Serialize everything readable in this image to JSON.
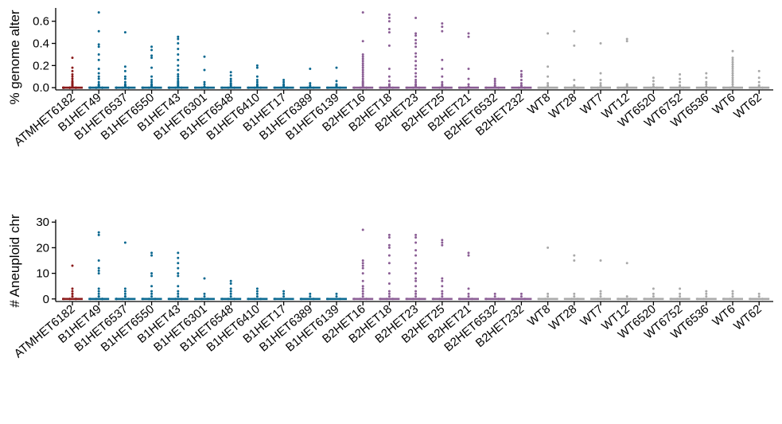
{
  "colors": {
    "ATM": "#8b1a1a",
    "B1": "#0a6890",
    "B2": "#8b5e95",
    "WT": "#a9a9a9"
  },
  "chart_data": [
    {
      "type": "scatter",
      "title": "",
      "xlabel": "",
      "ylabel": "% genome alter",
      "ylim": [
        -0.02,
        0.72
      ],
      "yticks": [
        "0.0",
        "0.2",
        "0.4",
        "0.6"
      ],
      "ytick_values": [
        0,
        0.2,
        0.4,
        0.6
      ],
      "categories": [
        "ATMHET6182",
        "B1HET49",
        "B1HET6537",
        "B1HET6550",
        "B1HET43",
        "B1HET6301",
        "B1HET6548",
        "B1HET6410",
        "B1HET17",
        "B1HET6389",
        "B1HET6139",
        "B2HET16",
        "B2HET18",
        "B2HET23",
        "B2HET25",
        "B2HET21",
        "B2HET6532",
        "B2HET232",
        "WT8",
        "WT28",
        "WT7",
        "WT12",
        "WT6520",
        "WT6752",
        "WT6536",
        "WT6",
        "WT62"
      ],
      "groups": [
        "ATM",
        "B1",
        "B1",
        "B1",
        "B1",
        "B1",
        "B1",
        "B1",
        "B1",
        "B1",
        "B1",
        "B2",
        "B2",
        "B2",
        "B2",
        "B2",
        "B2",
        "B2",
        "WT",
        "WT",
        "WT",
        "WT",
        "WT",
        "WT",
        "WT",
        "WT",
        "WT"
      ],
      "points": [
        [
          0.27,
          0.18,
          0.15,
          0.12,
          0.1,
          0.08,
          0.06,
          0.05,
          0.04,
          0.03,
          0.03,
          0.02,
          0.02,
          0.02,
          0.01,
          0.01,
          0.01,
          0.01,
          0,
          0,
          0,
          0,
          0,
          0,
          0,
          0
        ],
        [
          0.68,
          0.51,
          0.39,
          0.37,
          0.3,
          0.25,
          0.17,
          0.13,
          0.1,
          0.08,
          0.05,
          0.03,
          0.02,
          0.02,
          0.01,
          0.01,
          0,
          0,
          0,
          0,
          0,
          0
        ],
        [
          0.5,
          0.19,
          0.15,
          0.1,
          0.08,
          0.05,
          0.03,
          0.02,
          0.02,
          0.01,
          0.01,
          0,
          0,
          0,
          0,
          0
        ],
        [
          0.37,
          0.34,
          0.29,
          0.27,
          0.18,
          0.1,
          0.07,
          0.05,
          0.03,
          0.02,
          0.01,
          0.01,
          0,
          0,
          0,
          0
        ],
        [
          0.46,
          0.44,
          0.4,
          0.35,
          0.3,
          0.25,
          0.2,
          0.16,
          0.12,
          0.1,
          0.08,
          0.06,
          0.05,
          0.04,
          0.03,
          0.02,
          0.01,
          0.01,
          0,
          0,
          0,
          0
        ],
        [
          0.28,
          0.16,
          0.05,
          0.03,
          0.01,
          0,
          0,
          0
        ],
        [
          0.14,
          0.11,
          0.08,
          0.06,
          0.04,
          0.03,
          0.02,
          0.01,
          0,
          0,
          0
        ],
        [
          0.2,
          0.18,
          0.1,
          0.07,
          0.05,
          0.03,
          0.02,
          0.01,
          0,
          0,
          0
        ],
        [
          0.07,
          0.05,
          0.03,
          0.02,
          0.01,
          0,
          0,
          0
        ],
        [
          0.17,
          0.04,
          0.02,
          0.01,
          0,
          0
        ],
        [
          0.18,
          0.06,
          0.03,
          0.02,
          0.01,
          0,
          0
        ],
        [
          0.68,
          0.42,
          0.3,
          0.28,
          0.26,
          0.24,
          0.22,
          0.2,
          0.18,
          0.16,
          0.14,
          0.12,
          0.1,
          0.08,
          0.06,
          0.05,
          0.04,
          0.03,
          0.02,
          0.01,
          0,
          0,
          0
        ],
        [
          0.66,
          0.63,
          0.6,
          0.53,
          0.5,
          0.38,
          0.17,
          0.1,
          0.06,
          0.03,
          0.02,
          0.01,
          0,
          0,
          0
        ],
        [
          0.63,
          0.49,
          0.47,
          0.43,
          0.4,
          0.37,
          0.31,
          0.28,
          0.24,
          0.2,
          0.17,
          0.13,
          0.1,
          0.07,
          0.05,
          0.03,
          0.02,
          0.01,
          0,
          0,
          0
        ],
        [
          0.58,
          0.55,
          0.51,
          0.25,
          0.17,
          0.1,
          0.05,
          0.03,
          0.02,
          0.01,
          0,
          0
        ],
        [
          0.49,
          0.46,
          0.17,
          0.08,
          0.03,
          0.01,
          0,
          0
        ],
        [
          0.08,
          0.06,
          0.04,
          0.02,
          0.01,
          0,
          0
        ],
        [
          0.15,
          0.12,
          0.1,
          0.07,
          0.04,
          0.02,
          0.01,
          0,
          0
        ],
        [
          0.49,
          0.19,
          0.1,
          0.04,
          0.02,
          0.01,
          0,
          0
        ],
        [
          0.51,
          0.38,
          0.07,
          0.02,
          0.01,
          0.01,
          0,
          0,
          0
        ],
        [
          0.4,
          0.13,
          0.07,
          0.04,
          0.02,
          0.01,
          0,
          0
        ],
        [
          0.44,
          0.42,
          0.03,
          0.02,
          0.01,
          0.01,
          0,
          0
        ],
        [
          0.09,
          0.06,
          0.03,
          0.01,
          0,
          0
        ],
        [
          0.12,
          0.08,
          0.05,
          0.02,
          0.01,
          0
        ],
        [
          0.13,
          0.09,
          0.05,
          0.03,
          0.01,
          0
        ],
        [
          0.33,
          0.27,
          0.25,
          0.23,
          0.21,
          0.19,
          0.17,
          0.15,
          0.13,
          0.11,
          0.09,
          0.07,
          0.05,
          0.03,
          0.01,
          0,
          0
        ],
        [
          0.15,
          0.09,
          0.05,
          0.02,
          0.01,
          0
        ]
      ]
    },
    {
      "type": "scatter",
      "title": "",
      "xlabel": "",
      "ylabel": "# Aneuploid chr",
      "ylim": [
        -1,
        31
      ],
      "yticks": [
        "0",
        "10",
        "20",
        "30"
      ],
      "ytick_values": [
        0,
        10,
        20,
        30
      ],
      "categories": [
        "ATMHET6182",
        "B1HET49",
        "B1HET6537",
        "B1HET6550",
        "B1HET43",
        "B1HET6301",
        "B1HET6548",
        "B1HET6410",
        "B1HET17",
        "B1HET6389",
        "B1HET6139",
        "B2HET16",
        "B2HET18",
        "B2HET23",
        "B2HET25",
        "B2HET21",
        "B2HET6532",
        "B2HET232",
        "WT8",
        "WT28",
        "WT7",
        "WT12",
        "WT6520",
        "WT6752",
        "WT6536",
        "WT6",
        "WT62"
      ],
      "groups": [
        "ATM",
        "B1",
        "B1",
        "B1",
        "B1",
        "B1",
        "B1",
        "B1",
        "B1",
        "B1",
        "B1",
        "B2",
        "B2",
        "B2",
        "B2",
        "B2",
        "B2",
        "B2",
        "WT",
        "WT",
        "WT",
        "WT",
        "WT",
        "WT",
        "WT",
        "WT",
        "WT"
      ],
      "points": [
        [
          13,
          4,
          3,
          2,
          2,
          1,
          1,
          0,
          0,
          0,
          0,
          0
        ],
        [
          26,
          25,
          15,
          12,
          11,
          10,
          4,
          3,
          2,
          1,
          1,
          0,
          0,
          0,
          0
        ],
        [
          22,
          4,
          3,
          2,
          1,
          1,
          0,
          0,
          0,
          0
        ],
        [
          18,
          17,
          10,
          9,
          5,
          3,
          2,
          1,
          0,
          0,
          0
        ],
        [
          18,
          16,
          14,
          12,
          10,
          9,
          5,
          3,
          2,
          1,
          0,
          0,
          0
        ],
        [
          8,
          2,
          1,
          0,
          0,
          0
        ],
        [
          7,
          6,
          4,
          3,
          2,
          1,
          0,
          0,
          0
        ],
        [
          4,
          3,
          2,
          1,
          0,
          0,
          0
        ],
        [
          3,
          2,
          1,
          0,
          0
        ],
        [
          2,
          1,
          0,
          0
        ],
        [
          2,
          1,
          0,
          0
        ],
        [
          27,
          15,
          14,
          13,
          12,
          10,
          7,
          5,
          4,
          3,
          2,
          1,
          0,
          0,
          0
        ],
        [
          25,
          24,
          21,
          20,
          17,
          14,
          10,
          6,
          3,
          2,
          1,
          0,
          0,
          0
        ],
        [
          25,
          24,
          22,
          19,
          17,
          14,
          12,
          10,
          8,
          7,
          5,
          3,
          2,
          1,
          0,
          0,
          0
        ],
        [
          23,
          22,
          21,
          8,
          7,
          5,
          3,
          2,
          1,
          0,
          0
        ],
        [
          18,
          17,
          4,
          2,
          1,
          0,
          0
        ],
        [
          2,
          1,
          0,
          0
        ],
        [
          2,
          1,
          0,
          0
        ],
        [
          20,
          2,
          1,
          0,
          0
        ],
        [
          17,
          15,
          2,
          1,
          0,
          0
        ],
        [
          15,
          3,
          2,
          1,
          0,
          0
        ],
        [
          14,
          1,
          0,
          0
        ],
        [
          4,
          2,
          1,
          0,
          0
        ],
        [
          4,
          2,
          1,
          0,
          0
        ],
        [
          3,
          2,
          1,
          0,
          0
        ],
        [
          3,
          2,
          1,
          0,
          0
        ],
        [
          2,
          1,
          0,
          0
        ]
      ]
    }
  ]
}
